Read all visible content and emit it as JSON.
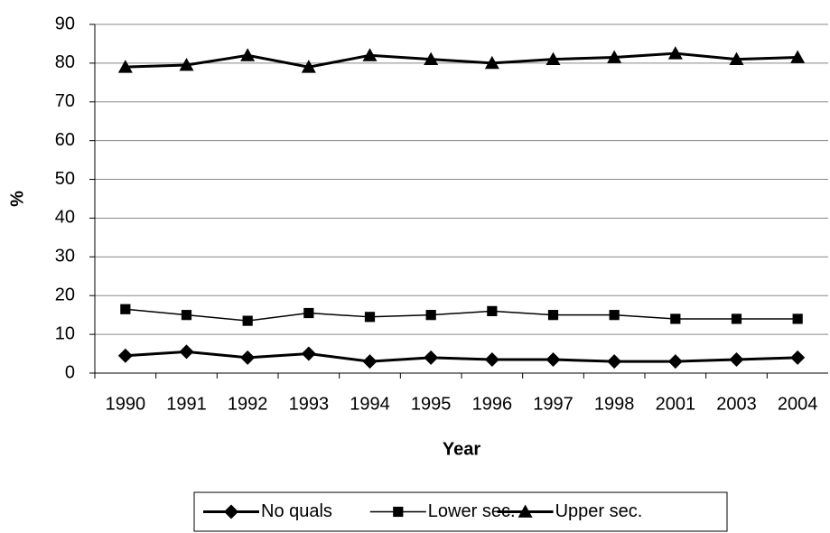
{
  "chart_data": {
    "type": "line",
    "x_label": "Year",
    "y_label": "%",
    "categories": [
      "1990",
      "1991",
      "1992",
      "1993",
      "1994",
      "1995",
      "1996",
      "1997",
      "1998",
      "2001",
      "2003",
      "2004"
    ],
    "series": [
      {
        "name": "No quals",
        "color": "#000000",
        "marker": "diamond",
        "line_width": 3,
        "values": [
          4.5,
          5.5,
          4,
          5,
          3,
          4,
          3.5,
          3.5,
          3,
          3,
          3.5,
          4
        ]
      },
      {
        "name": "Lower sec.",
        "color": "#000000",
        "marker": "square",
        "line_width": 1.5,
        "values": [
          16.5,
          15,
          13.5,
          15.5,
          14.5,
          15,
          16,
          15,
          15,
          14,
          14,
          14
        ]
      },
      {
        "name": "Upper sec.",
        "color": "#000000",
        "marker": "triangle",
        "line_width": 3,
        "values": [
          79,
          79.5,
          82,
          79,
          82,
          81,
          80,
          81,
          81.5,
          82.5,
          81,
          81.5
        ]
      }
    ],
    "ylim": [
      0,
      90
    ],
    "yticks": [
      0,
      10,
      20,
      30,
      40,
      50,
      60,
      70,
      80,
      90
    ],
    "grid": true,
    "legend": "bottom"
  }
}
